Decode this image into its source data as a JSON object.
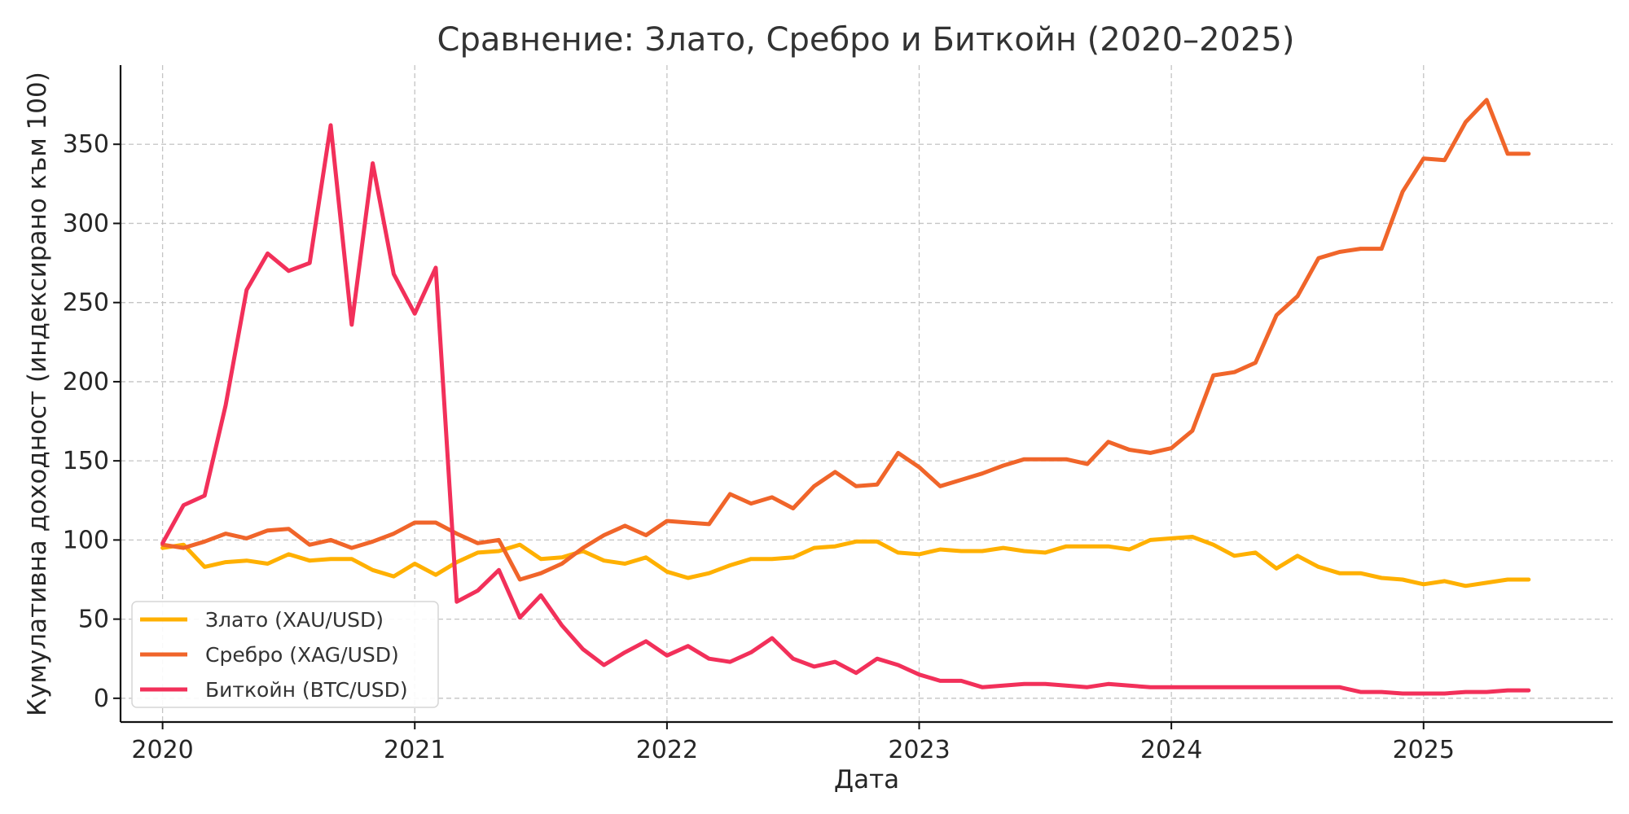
{
  "chart_data": {
    "type": "line",
    "title": "Сравнение: Злато, Сребро и Биткойн (2020–2025)",
    "xlabel": "Дата",
    "ylabel": "Кумулативна доходност (индексирано към 100)",
    "xlim": [
      "2019-11",
      "2025-10"
    ],
    "ylim": [
      -15,
      400
    ],
    "x_ticks": [
      "2020",
      "2021",
      "2022",
      "2023",
      "2024",
      "2025"
    ],
    "y_ticks": [
      0,
      50,
      100,
      150,
      200,
      250,
      300,
      350
    ],
    "grid": true,
    "legend_position": "lower-left",
    "x": [
      "2020-01",
      "2020-02",
      "2020-03",
      "2020-04",
      "2020-05",
      "2020-06",
      "2020-07",
      "2020-08",
      "2020-09",
      "2020-10",
      "2020-11",
      "2020-12",
      "2021-01",
      "2021-02",
      "2021-03",
      "2021-04",
      "2021-05",
      "2021-06",
      "2021-07",
      "2021-08",
      "2021-09",
      "2021-10",
      "2021-11",
      "2021-12",
      "2022-01",
      "2022-02",
      "2022-03",
      "2022-04",
      "2022-05",
      "2022-06",
      "2022-07",
      "2022-08",
      "2022-09",
      "2022-10",
      "2022-11",
      "2022-12",
      "2023-01",
      "2023-02",
      "2023-03",
      "2023-04",
      "2023-05",
      "2023-06",
      "2023-07",
      "2023-08",
      "2023-09",
      "2023-10",
      "2023-11",
      "2023-12",
      "2024-01",
      "2024-02",
      "2024-03",
      "2024-04",
      "2024-05",
      "2024-06",
      "2024-07",
      "2024-08",
      "2024-09",
      "2024-10",
      "2024-11",
      "2024-12",
      "2025-01",
      "2025-02",
      "2025-03",
      "2025-04",
      "2025-05",
      "2025-06"
    ],
    "series": [
      {
        "name": "Злато (XAU/USD)",
        "color": "#FFB000",
        "values": [
          95,
          97,
          83,
          86,
          87,
          85,
          91,
          87,
          88,
          88,
          81,
          77,
          85,
          78,
          86,
          92,
          93,
          97,
          88,
          89,
          93,
          87,
          85,
          89,
          80,
          76,
          79,
          84,
          88,
          88,
          89,
          95,
          96,
          99,
          99,
          92,
          91,
          94,
          93,
          93,
          95,
          93,
          92,
          96,
          96,
          96,
          94,
          100,
          101,
          102,
          97,
          90,
          92,
          82,
          90,
          83,
          79,
          79,
          76,
          75,
          72,
          74,
          71,
          73,
          75,
          75
        ],
        "legend_label": "Злато (XAU/USD)"
      },
      {
        "name": "Сребро (XAG/USD)",
        "color": "#F0652A",
        "values": [
          97,
          95,
          99,
          104,
          101,
          106,
          107,
          97,
          100,
          95,
          99,
          104,
          111,
          111,
          104,
          98,
          100,
          75,
          79,
          85,
          95,
          103,
          109,
          103,
          112,
          111,
          110,
          129,
          123,
          127,
          120,
          134,
          143,
          134,
          135,
          155,
          146,
          134,
          138,
          142,
          147,
          151,
          151,
          151,
          148,
          162,
          157,
          155,
          158,
          169,
          204,
          206,
          212,
          242,
          254,
          278,
          282,
          284,
          284,
          320,
          341,
          340,
          364,
          378,
          344,
          344
        ],
        "legend_label": "Сребро (XAG/USD)"
      },
      {
        "name": "Биткойн (BTC/USD)",
        "color": "#F2305A",
        "values": [
          98,
          122,
          128,
          185,
          258,
          281,
          270,
          275,
          362,
          236,
          338,
          268,
          243,
          272,
          61,
          68,
          81,
          51,
          65,
          46,
          31,
          21,
          29,
          36,
          27,
          33,
          25,
          23,
          29,
          38,
          25,
          20,
          23,
          16,
          25,
          21,
          15,
          11,
          11,
          7,
          8,
          9,
          9,
          8,
          7,
          9,
          8,
          7,
          7,
          7,
          7,
          7,
          7,
          7,
          7,
          7,
          7,
          4,
          4,
          3,
          3,
          3,
          4,
          4,
          5,
          5
        ]
      }
    ],
    "legend": [
      {
        "label": "Злато (XAU/USD)",
        "color": "#FFB000"
      },
      {
        "label": "Сребро (XAG/USD)",
        "color": "#F0652A"
      },
      {
        "label": "Биткойн (BTC/USD)",
        "color": "#F2305A"
      }
    ]
  }
}
